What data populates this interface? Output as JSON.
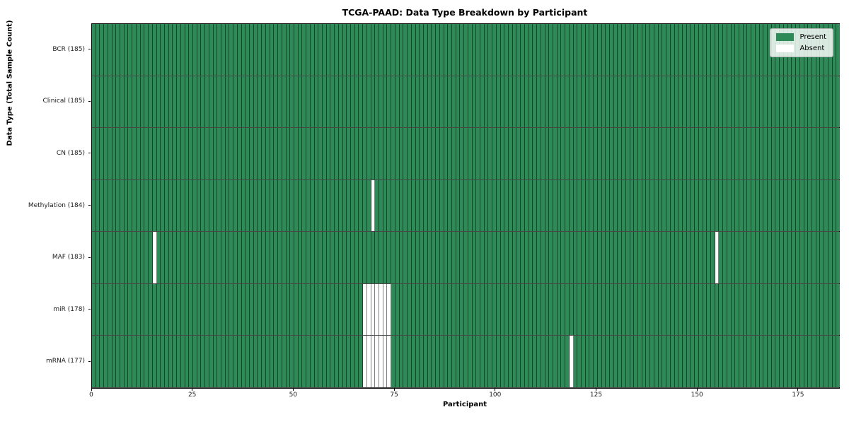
{
  "chart_data": {
    "type": "heatmap",
    "title": "TCGA-PAAD: Data Type Breakdown by Participant",
    "xlabel": "Participant",
    "ylabel": "Data Type (Total Sample Count)",
    "n_participants": 185,
    "xlim": [
      0,
      185
    ],
    "x_ticks": [
      0,
      25,
      50,
      75,
      100,
      125,
      150,
      175
    ],
    "grid": false,
    "legend": {
      "position": "upper right",
      "items": [
        {
          "label": "Present",
          "color": "#2e8b57"
        },
        {
          "label": "Absent",
          "color": "#ffffff"
        }
      ]
    },
    "rows": [
      {
        "label": "BCR (185)",
        "data_type": "BCR",
        "present_count": 185,
        "absent_participants": []
      },
      {
        "label": "Clinical (185)",
        "data_type": "Clinical",
        "present_count": 185,
        "absent_participants": []
      },
      {
        "label": "CN (185)",
        "data_type": "CN",
        "present_count": 185,
        "absent_participants": []
      },
      {
        "label": "Methylation (184)",
        "data_type": "Methylation",
        "present_count": 184,
        "absent_participants": [
          69
        ]
      },
      {
        "label": "MAF (183)",
        "data_type": "MAF",
        "present_count": 183,
        "absent_participants": [
          15,
          154
        ]
      },
      {
        "label": "miR (178)",
        "data_type": "miR",
        "present_count": 178,
        "absent_participants": [
          67,
          68,
          69,
          70,
          71,
          72,
          73
        ]
      },
      {
        "label": "mRNA (177)",
        "data_type": "mRNA",
        "present_count": 177,
        "absent_participants": [
          67,
          68,
          69,
          70,
          71,
          72,
          73,
          118
        ]
      }
    ],
    "colors": {
      "present": "#2e8b57",
      "absent": "#ffffff",
      "cell_edge": "rgba(0,0,0,0.5)",
      "row_separator": "rgba(0,0,0,0.72)",
      "plot_border": "#000000",
      "background": "#ffffff"
    }
  }
}
